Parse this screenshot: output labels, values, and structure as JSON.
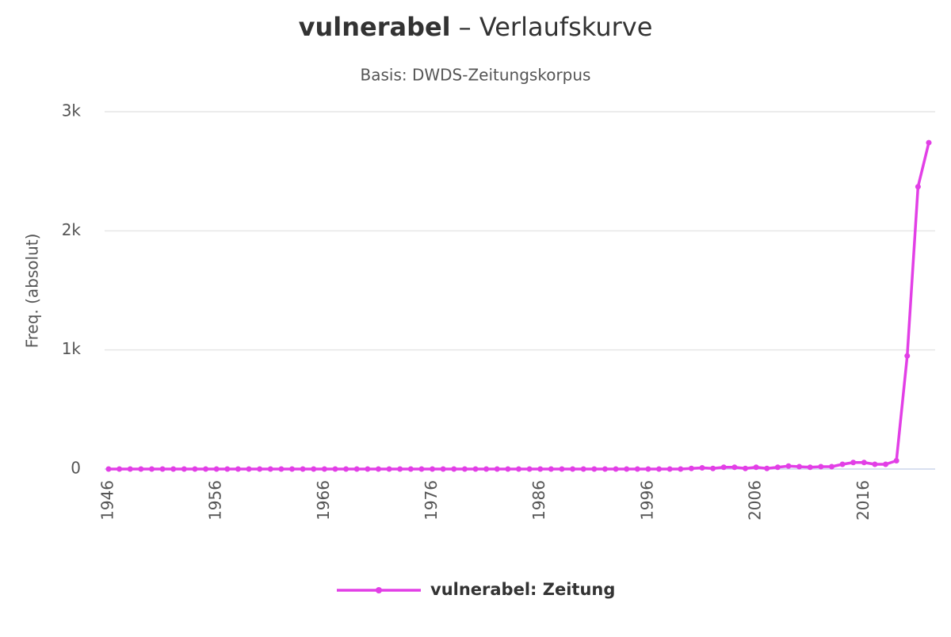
{
  "chart_data": {
    "type": "line",
    "keyword": "vulnerabel",
    "title": "– Verlaufskurve",
    "subtitle": "Basis: DWDS-Zeitungskorpus",
    "y_label": "Freq. (absolut)",
    "x": [
      1946,
      1947,
      1948,
      1949,
      1950,
      1951,
      1952,
      1953,
      1954,
      1955,
      1956,
      1957,
      1958,
      1959,
      1960,
      1961,
      1962,
      1963,
      1964,
      1965,
      1966,
      1967,
      1968,
      1969,
      1970,
      1971,
      1972,
      1973,
      1974,
      1975,
      1976,
      1977,
      1978,
      1979,
      1980,
      1981,
      1982,
      1983,
      1984,
      1985,
      1986,
      1987,
      1988,
      1989,
      1990,
      1991,
      1992,
      1993,
      1994,
      1995,
      1996,
      1997,
      1998,
      1999,
      2000,
      2001,
      2002,
      2003,
      2004,
      2005,
      2006,
      2007,
      2008,
      2009,
      2010,
      2011,
      2012,
      2013,
      2014,
      2015,
      2016,
      2017,
      2018,
      2019,
      2020,
      2021,
      2022
    ],
    "series": [
      {
        "name": "vulnerabel: Zeitung",
        "color": "#e23fe6",
        "values": [
          0,
          0,
          0,
          0,
          0,
          0,
          0,
          0,
          0,
          0,
          0,
          0,
          0,
          0,
          0,
          0,
          0,
          0,
          0,
          0,
          0,
          0,
          0,
          0,
          0,
          0,
          0,
          0,
          0,
          0,
          0,
          0,
          0,
          0,
          0,
          0,
          0,
          0,
          0,
          0,
          0,
          0,
          0,
          0,
          0,
          0,
          0,
          0,
          0,
          0,
          0,
          0,
          0,
          0,
          5,
          10,
          5,
          15,
          15,
          5,
          15,
          5,
          15,
          25,
          20,
          15,
          20,
          20,
          40,
          55,
          55,
          40,
          40,
          70,
          950,
          2370,
          2740
        ]
      }
    ],
    "xlim": [
      1946,
      2022
    ],
    "xticks": [
      1946,
      1956,
      1966,
      1976,
      1986,
      1996,
      2006,
      2016
    ],
    "ylim": [
      0,
      3000
    ],
    "yticks": [
      0,
      {
        "value": 1000,
        "label": "1k"
      },
      {
        "value": 2000,
        "label": "2k"
      },
      {
        "value": 3000,
        "label": "3k"
      }
    ],
    "grid": true
  }
}
